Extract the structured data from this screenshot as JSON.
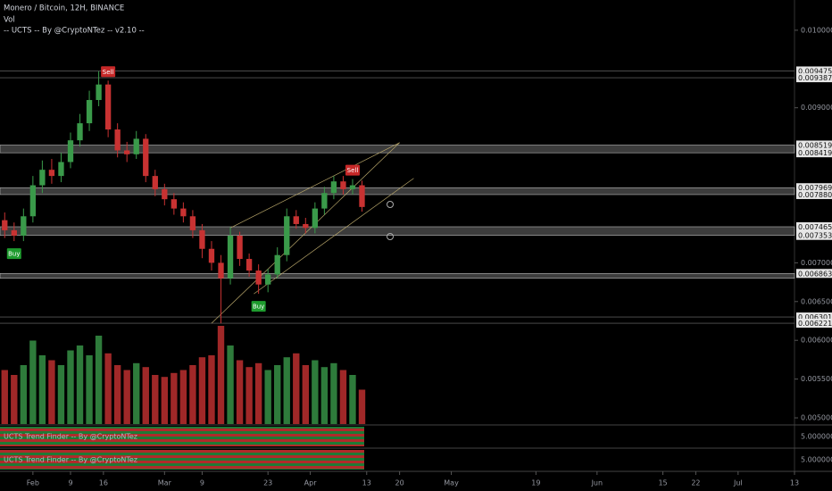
{
  "header": {
    "title": "Monero / Bitcoin, 12H, BINANCE",
    "volume_label": "Vol",
    "indicator": "-- UCTS -- By @CryptoNTez -- v2.10 --"
  },
  "chart_data": {
    "type": "candlestick",
    "up_color": "#3a9a4a",
    "down_color": "#c83232",
    "x": [
      -6,
      -4,
      -2,
      0,
      2,
      4,
      6,
      8,
      10,
      12,
      14,
      16,
      18,
      20,
      22,
      24,
      26,
      28,
      30,
      32,
      34,
      36,
      38,
      40,
      42,
      44,
      46,
      48,
      50,
      52,
      54,
      56,
      58,
      60,
      62,
      64,
      66,
      68,
      70
    ],
    "open": [
      0.00755,
      0.00742,
      0.00735,
      0.0076,
      0.008,
      0.0082,
      0.00812,
      0.0083,
      0.00858,
      0.0088,
      0.0091,
      0.0093,
      0.00872,
      0.00845,
      0.0084,
      0.0086,
      0.00812,
      0.00795,
      0.00782,
      0.0077,
      0.0076,
      0.00742,
      0.00718,
      0.007,
      0.0068,
      0.00735,
      0.00705,
      0.0069,
      0.00672,
      0.00685,
      0.0071,
      0.0076,
      0.0075,
      0.00745,
      0.0077,
      0.0079,
      0.00805,
      0.00795,
      0.008
    ],
    "high": [
      0.00765,
      0.00752,
      0.0077,
      0.00812,
      0.00832,
      0.00834,
      0.00842,
      0.00868,
      0.00892,
      0.00922,
      0.00947,
      0.00935,
      0.0088,
      0.00856,
      0.0087,
      0.00866,
      0.0082,
      0.00802,
      0.0079,
      0.00778,
      0.00768,
      0.0075,
      0.00728,
      0.0071,
      0.00746,
      0.0074,
      0.00712,
      0.00698,
      0.00692,
      0.0072,
      0.0077,
      0.00768,
      0.00758,
      0.00778,
      0.00798,
      0.00812,
      0.00812,
      0.00808,
      0.00806
    ],
    "low": [
      0.00732,
      0.00728,
      0.00728,
      0.00752,
      0.0079,
      0.00802,
      0.00804,
      0.00822,
      0.0085,
      0.0087,
      0.00902,
      0.00862,
      0.00836,
      0.0083,
      0.00834,
      0.00804,
      0.00786,
      0.00774,
      0.00762,
      0.00752,
      0.00732,
      0.00706,
      0.0069,
      0.00622,
      0.00672,
      0.00696,
      0.00682,
      0.0066,
      0.00662,
      0.0068,
      0.00702,
      0.00744,
      0.00738,
      0.00738,
      0.00762,
      0.00782,
      0.00788,
      0.00788,
      0.00766
    ],
    "close": [
      0.00742,
      0.00735,
      0.0076,
      0.008,
      0.0082,
      0.00812,
      0.0083,
      0.00858,
      0.0088,
      0.0091,
      0.0093,
      0.00872,
      0.00845,
      0.0084,
      0.0086,
      0.00812,
      0.00795,
      0.00782,
      0.0077,
      0.0076,
      0.00742,
      0.00718,
      0.007,
      0.0068,
      0.00735,
      0.00705,
      0.0069,
      0.00672,
      0.00685,
      0.0071,
      0.0076,
      0.0075,
      0.00745,
      0.0077,
      0.0079,
      0.00805,
      0.00795,
      0.008,
      0.00772
    ],
    "volumes": [
      55,
      50,
      60,
      85,
      70,
      65,
      60,
      75,
      80,
      70,
      90,
      72,
      60,
      55,
      62,
      58,
      50,
      48,
      52,
      55,
      60,
      68,
      70,
      100,
      80,
      65,
      58,
      62,
      55,
      60,
      68,
      72,
      60,
      65,
      58,
      62,
      55,
      50,
      35
    ],
    "vol_ylim": [
      0,
      100
    ],
    "xlim": [
      -7,
      162
    ],
    "xticks": [
      {
        "value": 0,
        "label": "Feb"
      },
      {
        "value": 8,
        "label": "9"
      },
      {
        "value": 15,
        "label": "16"
      },
      {
        "value": 28,
        "label": "Mar"
      },
      {
        "value": 36,
        "label": "9"
      },
      {
        "value": 50,
        "label": "23"
      },
      {
        "value": 59,
        "label": "Apr"
      },
      {
        "value": 71,
        "label": "13"
      },
      {
        "value": 78,
        "label": "20"
      },
      {
        "value": 89,
        "label": "May"
      },
      {
        "value": 107,
        "label": "19"
      },
      {
        "value": 120,
        "label": "Jun"
      },
      {
        "value": 134,
        "label": "15"
      },
      {
        "value": 141,
        "label": "22"
      },
      {
        "value": 150,
        "label": "Jul"
      },
      {
        "value": 162,
        "label": "13"
      }
    ],
    "ylim": [
      0.00492,
      0.01039
    ],
    "yticks": [
      {
        "value": 0.01,
        "label": "0.01000000"
      },
      {
        "value": 0.009,
        "label": "0.00900000"
      },
      {
        "value": 0.007,
        "label": "0.00700000"
      },
      {
        "value": 0.0065,
        "label": "0.00650000"
      },
      {
        "value": 0.006,
        "label": "0.00600000"
      },
      {
        "value": 0.0055,
        "label": "0.00550000"
      },
      {
        "value": 0.005,
        "label": "0.00500000"
      }
    ],
    "levels": [
      {
        "value": 0.009475,
        "label": "0.00947500"
      },
      {
        "value": 0.009387,
        "label": "0.00938700"
      },
      {
        "value": 0.006301,
        "label": "0.00630100"
      },
      {
        "value": 0.006221,
        "label": "0.00622100"
      }
    ],
    "zones": [
      {
        "top": {
          "value": 0.008519,
          "label": "0.00851900"
        },
        "bottom": {
          "value": 0.008419,
          "label": "0.00841900"
        }
      },
      {
        "top": {
          "value": 0.007969,
          "label": "0.00796900"
        },
        "bottom": {
          "value": 0.00788,
          "label": "0.00788000"
        }
      },
      {
        "top": {
          "value": 0.007465,
          "label": "0.00746500"
        },
        "bottom": {
          "value": 0.007353,
          "label": "0.00735300"
        }
      },
      {
        "top": {
          "value": 0.00686301,
          "label": "0.00686301"
        },
        "bottom": 0.0068
      }
    ],
    "trendlines": [
      [
        [
          38,
          0.00622
        ],
        [
          78,
          0.00855
        ]
      ],
      [
        [
          42,
          0.00745
        ],
        [
          78,
          0.00855
        ]
      ],
      [
        [
          47,
          0.0066
        ],
        [
          81,
          0.00809
        ]
      ]
    ],
    "annotations": [
      {
        "text": "Buy",
        "x": -4
      },
      {
        "text": "Sell",
        "x": 16
      },
      {
        "text": "Buy",
        "x": 48
      },
      {
        "text": "Sell",
        "x": 68
      }
    ]
  },
  "panels": [
    {
      "title": "UCTS Trend Finder -- By @CryptoNTez",
      "axis_label": "5.00000000"
    },
    {
      "title": "UCTS Trend Finder -- By @CryptoNTez",
      "axis_label": "5.00000000"
    }
  ]
}
